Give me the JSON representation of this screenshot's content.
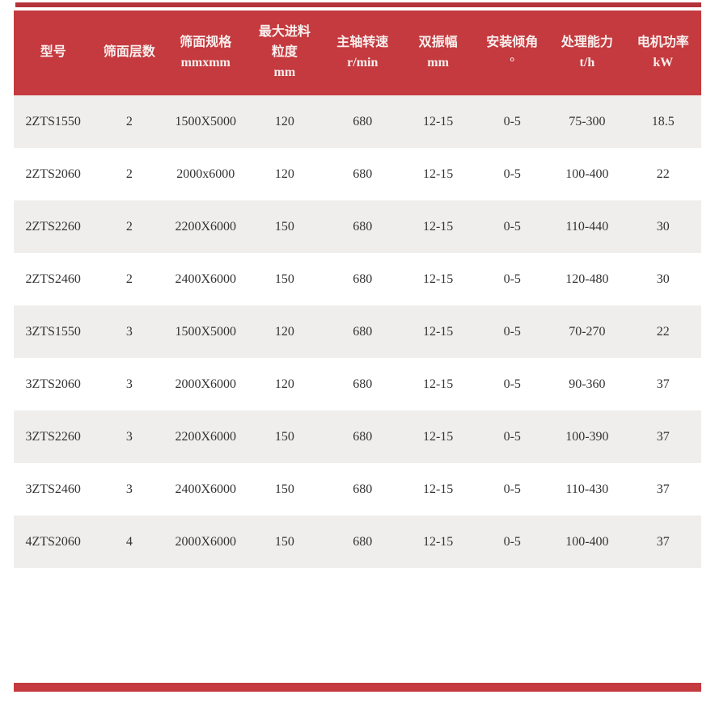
{
  "colors": {
    "header_bg": "#c43a3e",
    "top_accent_bar": "#b5333a",
    "bottom_accent_bar": "#c43a3e",
    "row_alt_bg": "#efeeed",
    "row_bg": "#ffffff",
    "header_text": "#f9efee",
    "cell_text": "#333333"
  },
  "table": {
    "columns": [
      {
        "lines": [
          "型号"
        ]
      },
      {
        "lines": [
          "筛面层数"
        ]
      },
      {
        "lines": [
          "筛面规格",
          "mmxmm"
        ]
      },
      {
        "lines": [
          "最大进料",
          "粒度",
          "mm"
        ]
      },
      {
        "lines": [
          "主轴转速",
          "r/min"
        ]
      },
      {
        "lines": [
          "双振幅",
          "mm"
        ]
      },
      {
        "lines": [
          "安装倾角",
          "°"
        ]
      },
      {
        "lines": [
          "处理能力",
          "t/h"
        ]
      },
      {
        "lines": [
          "电机功率",
          "kW"
        ]
      }
    ],
    "rows": [
      [
        "2ZTS1550",
        "2",
        "1500X5000",
        "120",
        "680",
        "12-15",
        "0-5",
        "75-300",
        "18.5"
      ],
      [
        "2ZTS2060",
        "2",
        "2000x6000",
        "120",
        "680",
        "12-15",
        "0-5",
        "100-400",
        "22"
      ],
      [
        "2ZTS2260",
        "2",
        "2200X6000",
        "150",
        "680",
        "12-15",
        "0-5",
        "110-440",
        "30"
      ],
      [
        "2ZTS2460",
        "2",
        "2400X6000",
        "150",
        "680",
        "12-15",
        "0-5",
        "120-480",
        "30"
      ],
      [
        "3ZTS1550",
        "3",
        "1500X5000",
        "120",
        "680",
        "12-15",
        "0-5",
        "70-270",
        "22"
      ],
      [
        "3ZTS2060",
        "3",
        "2000X6000",
        "120",
        "680",
        "12-15",
        "0-5",
        "90-360",
        "37"
      ],
      [
        "3ZTS2260",
        "3",
        "2200X6000",
        "150",
        "680",
        "12-15",
        "0-5",
        "100-390",
        "37"
      ],
      [
        "3ZTS2460",
        "3",
        "2400X6000",
        "150",
        "680",
        "12-15",
        "0-5",
        "110-430",
        "37"
      ],
      [
        "4ZTS2060",
        "4",
        "2000X6000",
        "150",
        "680",
        "12-15",
        "0-5",
        "100-400",
        "37"
      ]
    ]
  }
}
